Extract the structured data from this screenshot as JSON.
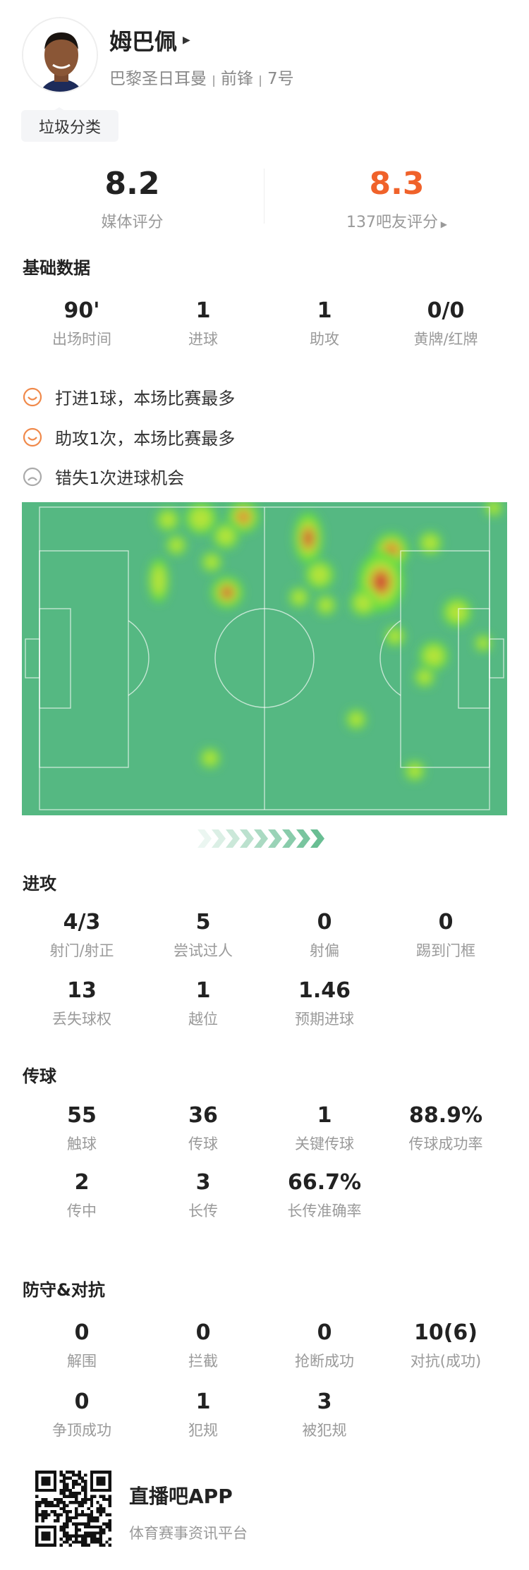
{
  "player": {
    "name": "姆巴佩",
    "club": "巴黎圣日耳曼",
    "position": "前锋",
    "number": "7号",
    "separator": "|",
    "tag": "垃圾分类"
  },
  "ratings": {
    "media": {
      "value": "8.2",
      "label": "媒体评分"
    },
    "fans": {
      "value": "8.3",
      "label": "137吧友评分",
      "color": "#f0622a"
    }
  },
  "basic": {
    "title": "基础数据",
    "stats": [
      {
        "v": "90'",
        "l": "出场时间"
      },
      {
        "v": "1",
        "l": "进球"
      },
      {
        "v": "1",
        "l": "助攻"
      },
      {
        "v": "0/0",
        "l": "黄牌/红牌"
      }
    ]
  },
  "highlights": [
    {
      "icon": "smile-icon",
      "text": "打进1球，本场比赛最多",
      "color": "#f0894a"
    },
    {
      "icon": "smile-icon",
      "text": "助攻1次，本场比赛最多",
      "color": "#f0894a"
    },
    {
      "icon": "sad-icon",
      "text": "错失1次进球机会",
      "color": "#aaaaaa"
    }
  ],
  "heatmap": {
    "pitch_color": "#55b882",
    "attack_direction": "right"
  },
  "attack": {
    "title": "进攻",
    "stats": [
      {
        "v": "4/3",
        "l": "射门/射正"
      },
      {
        "v": "5",
        "l": "尝试过人"
      },
      {
        "v": "0",
        "l": "射偏"
      },
      {
        "v": "0",
        "l": "踢到门框"
      },
      {
        "v": "13",
        "l": "丢失球权"
      },
      {
        "v": "1",
        "l": "越位"
      },
      {
        "v": "1.46",
        "l": "预期进球"
      }
    ]
  },
  "passing": {
    "title": "传球",
    "stats": [
      {
        "v": "55",
        "l": "触球"
      },
      {
        "v": "36",
        "l": "传球"
      },
      {
        "v": "1",
        "l": "关键传球"
      },
      {
        "v": "88.9%",
        "l": "传球成功率"
      },
      {
        "v": "2",
        "l": "传中"
      },
      {
        "v": "3",
        "l": "长传"
      },
      {
        "v": "66.7%",
        "l": "长传准确率"
      }
    ]
  },
  "defense": {
    "title": "防守&对抗",
    "stats": [
      {
        "v": "0",
        "l": "解围"
      },
      {
        "v": "0",
        "l": "拦截"
      },
      {
        "v": "0",
        "l": "抢断成功"
      },
      {
        "v": "10(6)",
        "l": "对抗(成功)"
      },
      {
        "v": "0",
        "l": "争顶成功"
      },
      {
        "v": "1",
        "l": "犯规"
      },
      {
        "v": "3",
        "l": "被犯规"
      }
    ]
  },
  "footer": {
    "app": "直播吧APP",
    "tagline": "体育赛事资讯平台"
  }
}
